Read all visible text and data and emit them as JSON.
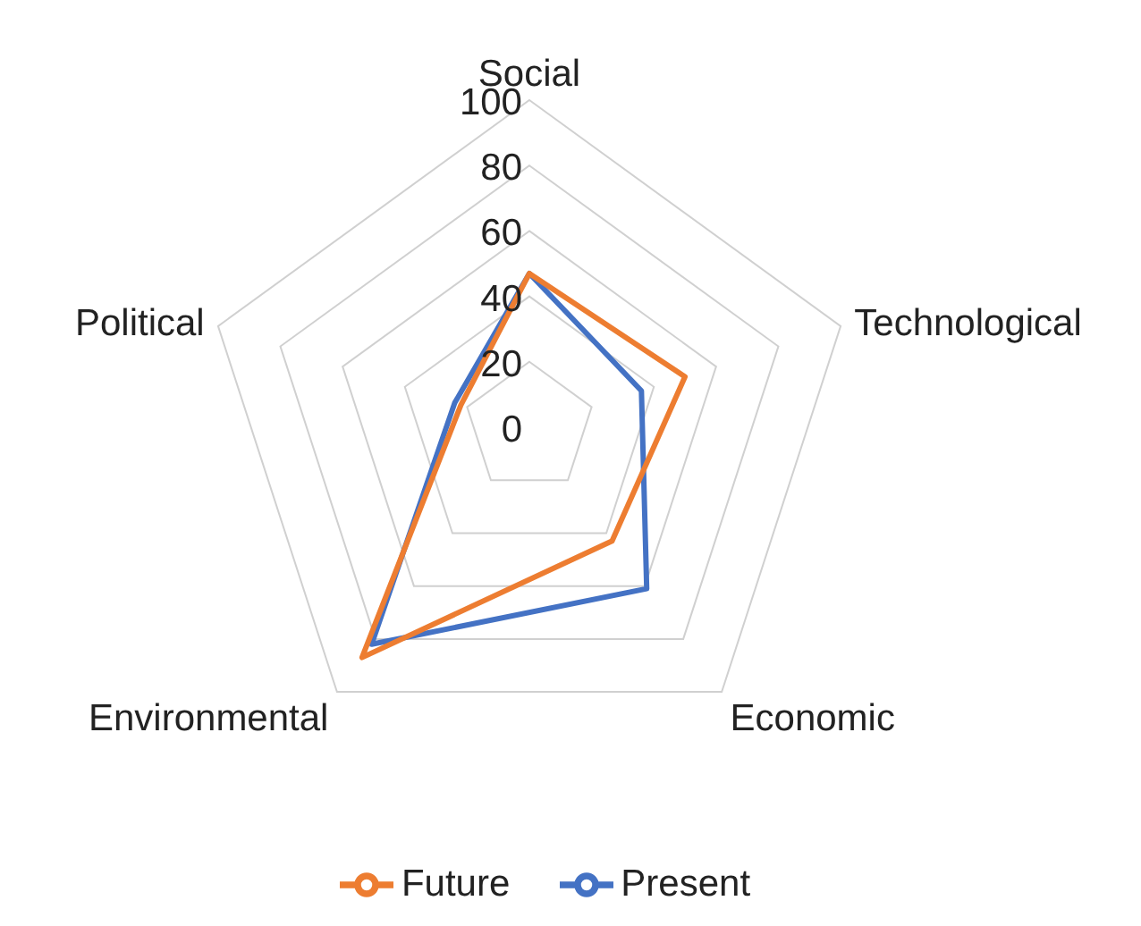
{
  "chart_data": {
    "type": "radar",
    "categories": [
      "Social",
      "Technological",
      "Economic",
      "Environmental",
      "Political"
    ],
    "series": [
      {
        "name": "Present",
        "color": "#4472c4",
        "values": [
          47,
          36,
          61,
          82,
          24
        ]
      },
      {
        "name": "Future",
        "color": "#ed7d31",
        "values": [
          47,
          50,
          43,
          87,
          22
        ]
      }
    ],
    "ylim": [
      0,
      100
    ],
    "yticks": [
      0,
      20,
      40,
      60,
      80,
      100
    ],
    "grid": true,
    "legend": "bottom",
    "marker": "none"
  }
}
